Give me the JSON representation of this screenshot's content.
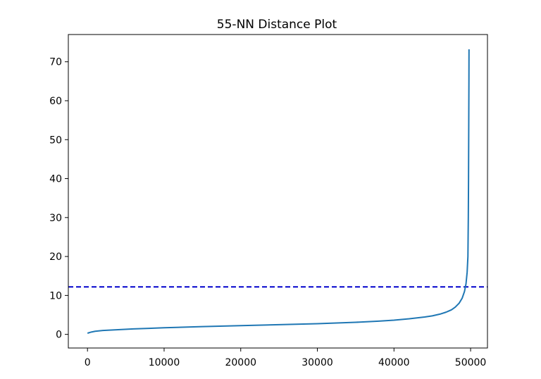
{
  "chart_data": {
    "type": "line",
    "title": "55-NN Distance Plot",
    "xlabel": "",
    "ylabel": "",
    "xlim": [
      -2500,
      52200
    ],
    "ylim": [
      -3.5,
      77
    ],
    "xticks": [
      0,
      10000,
      20000,
      30000,
      40000,
      50000
    ],
    "yticks": [
      0,
      10,
      20,
      30,
      40,
      50,
      60,
      70
    ],
    "grid": false,
    "series": [
      {
        "color": "#1f77b4",
        "x": [
          0,
          500,
          1000,
          2000,
          4000,
          6000,
          8000,
          10000,
          15000,
          20000,
          25000,
          30000,
          35000,
          38000,
          40000,
          42000,
          44000,
          45000,
          46000,
          46800,
          47500,
          48000,
          48500,
          48900,
          49200,
          49400,
          49550,
          49650,
          49700,
          49730,
          49760,
          49780,
          49790
        ],
        "y": [
          0.3,
          0.6,
          0.8,
          1.0,
          1.2,
          1.4,
          1.55,
          1.7,
          2.0,
          2.25,
          2.5,
          2.75,
          3.1,
          3.4,
          3.65,
          4.0,
          4.45,
          4.75,
          5.2,
          5.7,
          6.3,
          7.0,
          8.0,
          9.3,
          11.0,
          13.0,
          16.0,
          20.0,
          30.0,
          40.0,
          55.0,
          65.0,
          73.2
        ]
      }
    ],
    "reference_lines": [
      {
        "orientation": "horizontal",
        "y": 12.2,
        "style": "dashed",
        "color": "#0000cc"
      }
    ]
  }
}
